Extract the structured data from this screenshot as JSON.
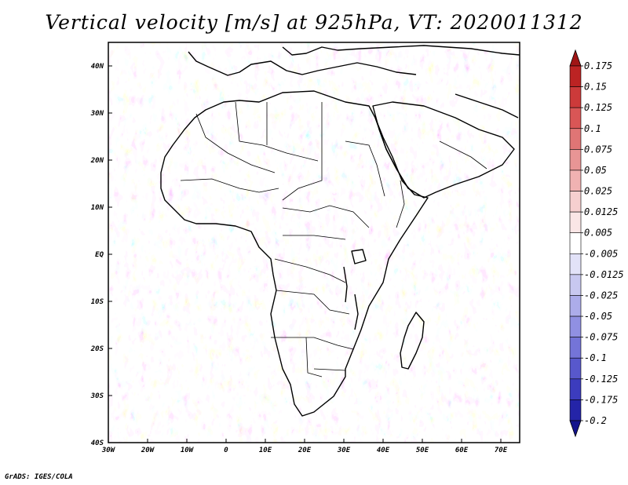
{
  "title": "Vertical velocity [m/s] at 925hPa, VT: 2020011312",
  "credit": "GrADS: IGES/COLA",
  "map": {
    "lon_ticks": [
      "30W",
      "20W",
      "10W",
      "0",
      "10E",
      "20E",
      "30E",
      "40E",
      "50E",
      "60E",
      "70E"
    ],
    "lat_ticks": [
      "40N",
      "30N",
      "20N",
      "10N",
      "EQ",
      "10S",
      "20S",
      "30S",
      "40S"
    ]
  },
  "colorbar": {
    "labels": [
      "0.175",
      "0.15",
      "0.125",
      "0.1",
      "0.075",
      "0.05",
      "0.025",
      "0.0125",
      "0.005",
      "-0.005",
      "-0.0125",
      "-0.025",
      "-0.05",
      "-0.075",
      "-0.1",
      "-0.125",
      "-0.175",
      "-0.2"
    ],
    "colors": [
      "#a01515",
      "#bc2323",
      "#cc3a3a",
      "#d95656",
      "#e07575",
      "#e89595",
      "#f0b2b2",
      "#f6cfcf",
      "#fae6e6",
      "#ffffff",
      "#e2e2f8",
      "#c8c8f0",
      "#acacea",
      "#9090e2",
      "#7474d8",
      "#5858cc",
      "#3c3cbe",
      "#2424a8",
      "#13138c"
    ]
  }
}
